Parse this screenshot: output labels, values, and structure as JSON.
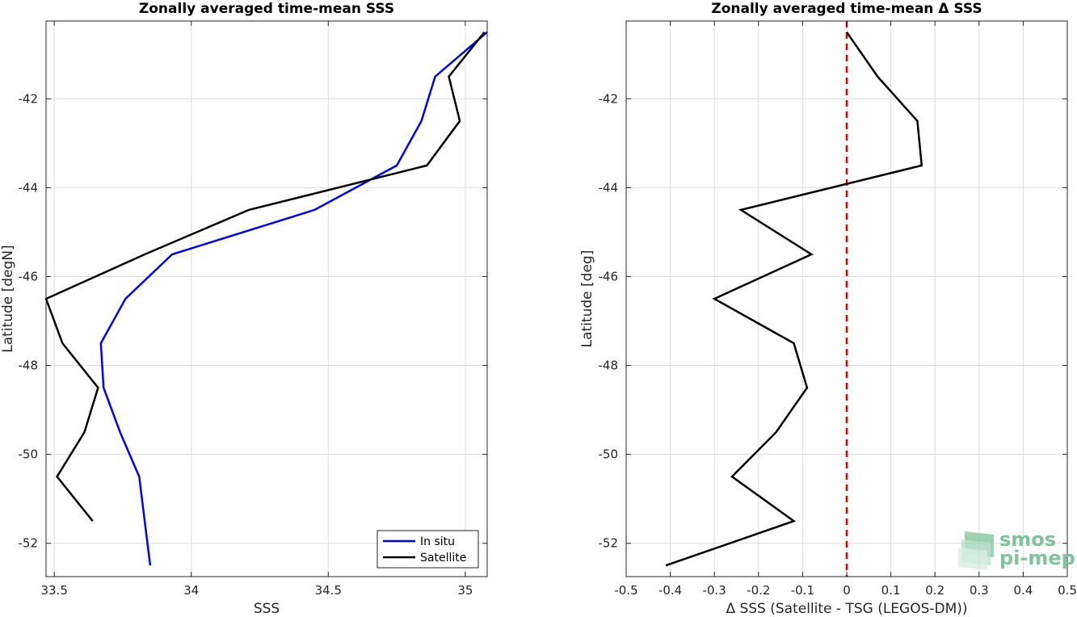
{
  "chart_data": [
    {
      "type": "line",
      "title": "Zonally averaged time-mean SSS",
      "xlabel": "SSS",
      "ylabel": "Latitude [degN]",
      "xlim": [
        33.47,
        35.08
      ],
      "ylim": [
        -52.75,
        -40.25
      ],
      "xticks": [
        33.5,
        34,
        34.5,
        35
      ],
      "xtick_labels": [
        "33.5",
        "34",
        "34.5",
        "35"
      ],
      "yticks": [
        -52,
        -50,
        -48,
        -46,
        -44,
        -42
      ],
      "ytick_labels": [
        "-52",
        "-50",
        "-48",
        "-46",
        "-44",
        "-42"
      ],
      "grid": true,
      "legend": "bottom-right",
      "series": [
        {
          "name": "In situ",
          "color": "#0000ff",
          "x": [
            35.08,
            34.89,
            34.84,
            34.75,
            34.45,
            33.93,
            33.76,
            33.67,
            33.68,
            33.74,
            33.81,
            33.85
          ],
          "y": [
            -40.5,
            -41.5,
            -42.5,
            -43.5,
            -44.5,
            -45.5,
            -46.5,
            -47.5,
            -48.5,
            -49.5,
            -50.5,
            -52.5
          ]
        },
        {
          "name": "Satellite",
          "color": "#000000",
          "x": [
            35.07,
            34.94,
            34.98,
            34.86,
            34.21,
            33.83,
            33.47,
            33.53,
            33.66,
            33.61,
            33.51,
            33.64
          ],
          "y": [
            -40.5,
            -41.5,
            -42.5,
            -43.5,
            -44.5,
            -45.5,
            -46.5,
            -47.5,
            -48.5,
            -49.5,
            -50.5,
            -51.5
          ]
        }
      ]
    },
    {
      "type": "line",
      "title": "Zonally averaged time-mean Δ SSS",
      "xlabel": "Δ SSS (Satellite - TSG (LEGOS-DM))",
      "ylabel": "Latitude [deg]",
      "xlim": [
        -0.5,
        0.5
      ],
      "ylim": [
        -52.75,
        -40.25
      ],
      "xticks": [
        -0.5,
        -0.4,
        -0.3,
        -0.2,
        -0.1,
        0,
        0.1,
        0.2,
        0.3,
        0.4,
        0.5
      ],
      "xtick_labels": [
        "-0.5",
        "-0.4",
        "-0.3",
        "-0.2",
        "-0.1",
        "0",
        "0.1",
        "0.2",
        "0.3",
        "0.4",
        "0.5"
      ],
      "yticks": [
        -52,
        -50,
        -48,
        -46,
        -44,
        -42
      ],
      "ytick_labels": [
        "-52",
        "-50",
        "-48",
        "-46",
        "-44",
        "-42"
      ],
      "grid": true,
      "reference_line": {
        "x": 0,
        "color": "#e60000",
        "style": "dashed"
      },
      "series": [
        {
          "color": "#000000",
          "x": [
            0.0,
            0.07,
            0.16,
            0.17,
            -0.24,
            -0.08,
            -0.3,
            -0.12,
            -0.09,
            -0.16,
            -0.26,
            -0.12,
            -0.41
          ],
          "y": [
            -40.5,
            -41.5,
            -42.5,
            -43.5,
            -44.5,
            -45.5,
            -46.5,
            -47.5,
            -48.5,
            -49.5,
            -50.5,
            -51.5,
            -52.5
          ]
        }
      ]
    }
  ],
  "logo": {
    "line1": "smos",
    "line2": "pi-mep",
    "color": "#7fc49a"
  }
}
